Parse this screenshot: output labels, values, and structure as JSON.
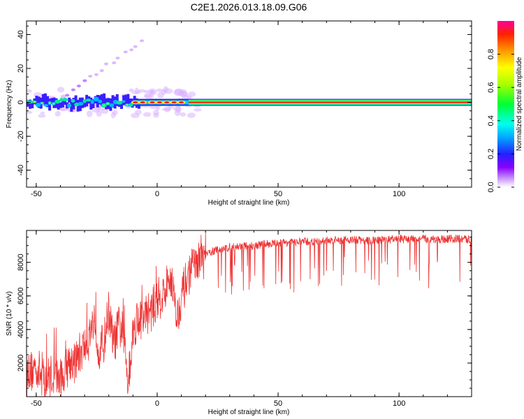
{
  "title": "C2E1.2026.013.18.09.G06",
  "chart_data": [
    {
      "type": "heatmap",
      "xlabel": "Height of straight line (km)",
      "ylabel": "Frequency (Hz)",
      "xlim": [
        -54,
        130
      ],
      "ylim": [
        -50,
        48
      ],
      "xticks": [
        -50,
        0,
        50,
        100
      ],
      "yticks": [
        -40,
        -20,
        0,
        20,
        40
      ],
      "colorbar": {
        "label": "Normalized spectral amplitude",
        "range": [
          0,
          1
        ],
        "ticks": [
          0.0,
          0.2,
          0.4,
          0.6,
          0.8
        ]
      }
    },
    {
      "type": "line",
      "xlabel": "Height of straight line (km)",
      "ylabel": "SNR (10 * v/v)",
      "xlim": [
        -54,
        130
      ],
      "ylim": [
        0,
        9900
      ],
      "xticks": [
        -50,
        0,
        50,
        100
      ],
      "yticks": [
        2000,
        4000,
        6000,
        8000
      ],
      "series": [
        {
          "name": "SNR",
          "color": "#ee3333",
          "x": [
            -54,
            -52,
            -50,
            -48,
            -46,
            -44,
            -42,
            -40,
            -38,
            -36,
            -34,
            -32,
            -30,
            -28,
            -26,
            -24,
            -22,
            -20,
            -18,
            -16,
            -14,
            -12,
            -10,
            -8,
            -6,
            -4,
            -2,
            0,
            2,
            4,
            6,
            8,
            10,
            12,
            14,
            16,
            18,
            20,
            22,
            24,
            26,
            28,
            30,
            35,
            40,
            45,
            50,
            55,
            60,
            65,
            70,
            75,
            80,
            85,
            90,
            95,
            100,
            105,
            110,
            115,
            120,
            125,
            130
          ],
          "y": [
            1000,
            1500,
            1800,
            1300,
            1000,
            1300,
            1200,
            1000,
            1500,
            2200,
            2000,
            2600,
            3000,
            3500,
            4800,
            2800,
            3200,
            5200,
            3000,
            4200,
            3800,
            1000,
            3800,
            4800,
            4500,
            5000,
            5200,
            5800,
            6000,
            6300,
            7200,
            4500,
            6000,
            6800,
            7600,
            7800,
            8000,
            8400,
            8600,
            8700,
            8800,
            8850,
            8900,
            8950,
            9000,
            9100,
            9150,
            9200,
            9250,
            9200,
            9300,
            9300,
            9350,
            9300,
            9300,
            9350,
            9400,
            9350,
            9400,
            9350,
            9400,
            9400,
            9350
          ]
        }
      ]
    }
  ]
}
